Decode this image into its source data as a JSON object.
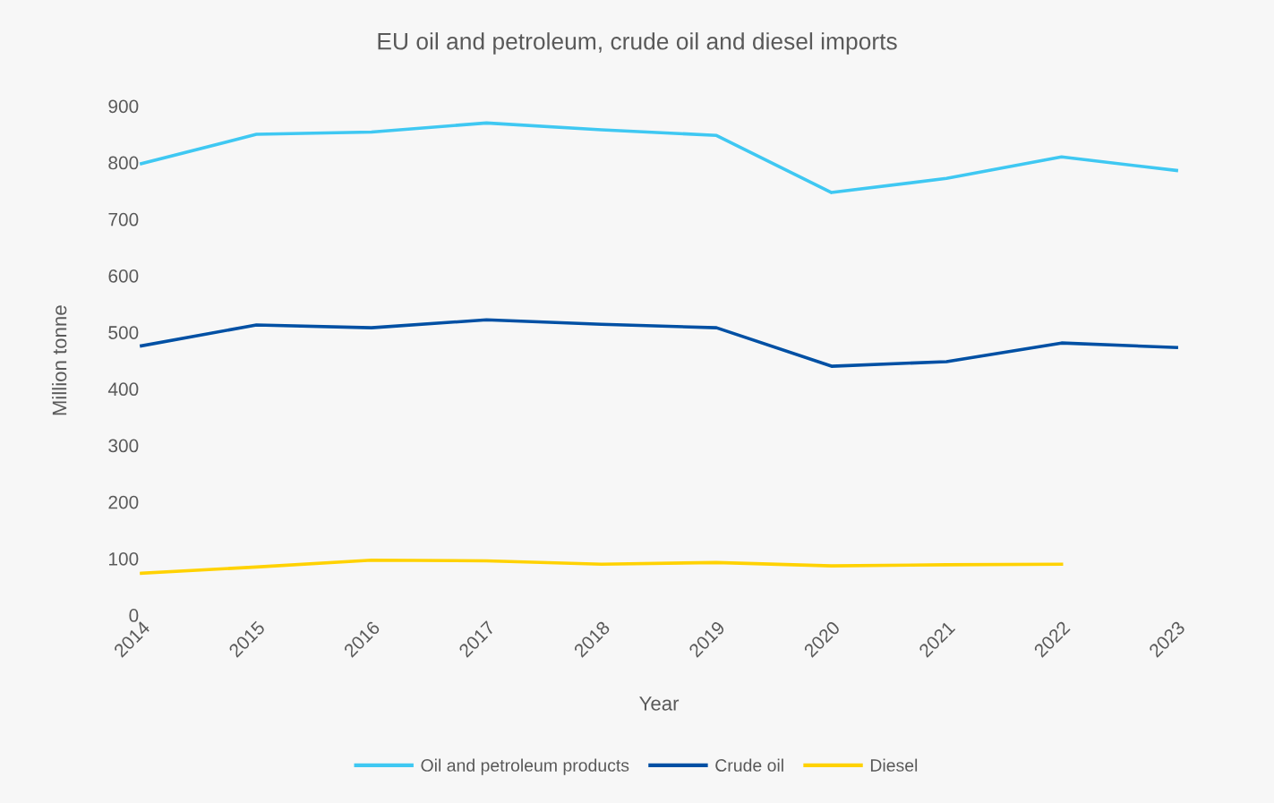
{
  "chart_data": {
    "type": "line",
    "title": "EU oil and petroleum, crude oil and diesel imports",
    "xlabel": "Year",
    "ylabel": "Million tonne",
    "categories": [
      "2014",
      "2015",
      "2016",
      "2017",
      "2018",
      "2019",
      "2020",
      "2021",
      "2022",
      "2023"
    ],
    "series": [
      {
        "name": "Oil and petroleum products",
        "color": "#3fc8f2",
        "values": [
          798,
          850,
          854,
          870,
          858,
          848,
          747,
          772,
          810,
          786
        ]
      },
      {
        "name": "Crude oil",
        "color": "#0050a4",
        "values": [
          476,
          513,
          508,
          522,
          514,
          508,
          440,
          448,
          481,
          473
        ]
      },
      {
        "name": "Diesel",
        "color": "#ffd200",
        "values": [
          74,
          85,
          97,
          96,
          90,
          93,
          87,
          89,
          90,
          null
        ]
      }
    ],
    "ylim": [
      0,
      900
    ],
    "yticks": [
      0,
      100,
      200,
      300,
      400,
      500,
      600,
      700,
      800,
      900
    ],
    "grid": false,
    "legend": "bottom",
    "marker": "none",
    "line_style": "solid"
  }
}
